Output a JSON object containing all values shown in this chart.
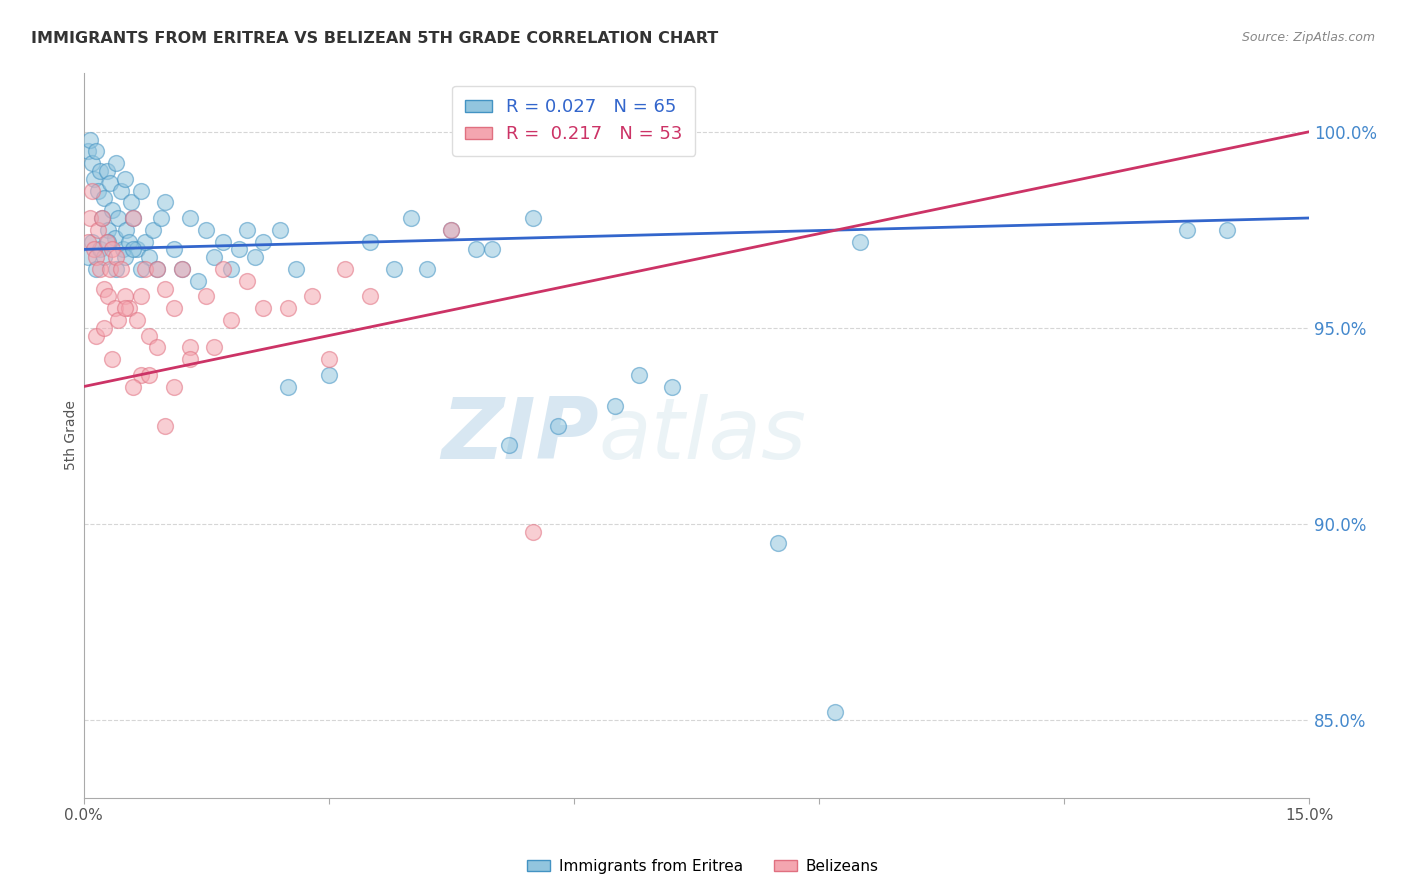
{
  "title": "IMMIGRANTS FROM ERITREA VS BELIZEAN 5TH GRADE CORRELATION CHART",
  "source": "Source: ZipAtlas.com",
  "ylabel": "5th Grade",
  "xmin": 0.0,
  "xmax": 15.0,
  "ymin": 83.0,
  "ymax": 101.5,
  "yticks": [
    85.0,
    90.0,
    95.0,
    100.0
  ],
  "ytick_labels": [
    "85.0%",
    "90.0%",
    "95.0%",
    "100.0%"
  ],
  "xticks": [
    0.0,
    3.0,
    6.0,
    9.0,
    12.0,
    15.0
  ],
  "xtick_labels": [
    "0.0%",
    "",
    "",
    "",
    "",
    "15.0%"
  ],
  "blue_R": 0.027,
  "blue_N": 65,
  "pink_R": 0.217,
  "pink_N": 53,
  "legend_label_blue": "Immigrants from Eritrea",
  "legend_label_pink": "Belizeans",
  "blue_color": "#92c5de",
  "pink_color": "#f4a6b0",
  "blue_edge_color": "#4393c3",
  "pink_edge_color": "#e07080",
  "blue_line_color": "#3366cc",
  "pink_line_color": "#cc3366",
  "blue_trendline": [
    0.0,
    97.0,
    15.0,
    97.8
  ],
  "pink_trendline": [
    0.0,
    93.5,
    15.0,
    100.0
  ],
  "blue_scatter_x": [
    0.05,
    0.08,
    0.1,
    0.12,
    0.15,
    0.18,
    0.2,
    0.22,
    0.25,
    0.28,
    0.3,
    0.32,
    0.35,
    0.38,
    0.4,
    0.42,
    0.45,
    0.48,
    0.5,
    0.52,
    0.55,
    0.58,
    0.6,
    0.65,
    0.7,
    0.75,
    0.8,
    0.85,
    0.9,
    0.95,
    1.0,
    1.1,
    1.2,
    1.3,
    1.4,
    1.5,
    1.6,
    1.7,
    1.8,
    1.9,
    2.0,
    2.1,
    2.2,
    2.4,
    2.6,
    3.5,
    4.0,
    4.2,
    4.5,
    5.0,
    5.5,
    6.8,
    7.2,
    9.5,
    13.5,
    0.05,
    0.1,
    0.15,
    0.2,
    0.25,
    0.3,
    0.4,
    0.5,
    0.6,
    0.7
  ],
  "blue_scatter_y": [
    99.5,
    99.8,
    99.2,
    98.8,
    99.5,
    98.5,
    99.0,
    97.8,
    98.3,
    99.0,
    97.5,
    98.7,
    98.0,
    97.3,
    99.2,
    97.8,
    98.5,
    97.0,
    98.8,
    97.5,
    97.2,
    98.2,
    97.8,
    97.0,
    98.5,
    97.2,
    96.8,
    97.5,
    96.5,
    97.8,
    98.2,
    97.0,
    96.5,
    97.8,
    96.2,
    97.5,
    96.8,
    97.2,
    96.5,
    97.0,
    97.5,
    96.8,
    97.2,
    97.5,
    96.5,
    97.2,
    97.8,
    96.5,
    97.5,
    97.0,
    97.8,
    93.8,
    93.5,
    97.2,
    97.5,
    96.8,
    97.2,
    96.5,
    97.0,
    96.8,
    97.2,
    96.5,
    96.8,
    97.0,
    96.5
  ],
  "blue_scatter_x2": [
    2.5,
    3.0,
    5.2,
    5.8,
    8.5,
    14.0,
    3.8,
    4.8,
    6.5,
    9.2
  ],
  "blue_scatter_y2": [
    93.5,
    93.8,
    92.0,
    92.5,
    89.5,
    97.5,
    96.5,
    97.0,
    93.0,
    85.2
  ],
  "pink_scatter_x": [
    0.05,
    0.08,
    0.1,
    0.12,
    0.15,
    0.18,
    0.2,
    0.22,
    0.25,
    0.28,
    0.3,
    0.32,
    0.35,
    0.38,
    0.4,
    0.42,
    0.45,
    0.5,
    0.55,
    0.6,
    0.65,
    0.7,
    0.75,
    0.8,
    0.9,
    1.0,
    1.1,
    1.2,
    1.3,
    1.5,
    1.7,
    2.0,
    2.5,
    3.0,
    3.5,
    0.15,
    0.25,
    0.35,
    0.5,
    0.7,
    0.9,
    1.1,
    1.3,
    1.6,
    2.2,
    5.5,
    0.6,
    0.8,
    1.0,
    1.8,
    2.8,
    3.2,
    4.5
  ],
  "pink_scatter_y": [
    97.2,
    97.8,
    98.5,
    97.0,
    96.8,
    97.5,
    96.5,
    97.8,
    96.0,
    97.2,
    95.8,
    96.5,
    97.0,
    95.5,
    96.8,
    95.2,
    96.5,
    95.8,
    95.5,
    97.8,
    95.2,
    95.8,
    96.5,
    94.8,
    96.5,
    96.0,
    95.5,
    96.5,
    94.5,
    95.8,
    96.5,
    96.2,
    95.5,
    94.2,
    95.8,
    94.8,
    95.0,
    94.2,
    95.5,
    93.8,
    94.5,
    93.5,
    94.2,
    94.5,
    95.5,
    89.8,
    93.5,
    93.8,
    92.5,
    95.2,
    95.8,
    96.5,
    97.5
  ],
  "watermark_zip": "ZIP",
  "watermark_atlas": "atlas",
  "background_color": "#ffffff",
  "grid_color": "#cccccc"
}
